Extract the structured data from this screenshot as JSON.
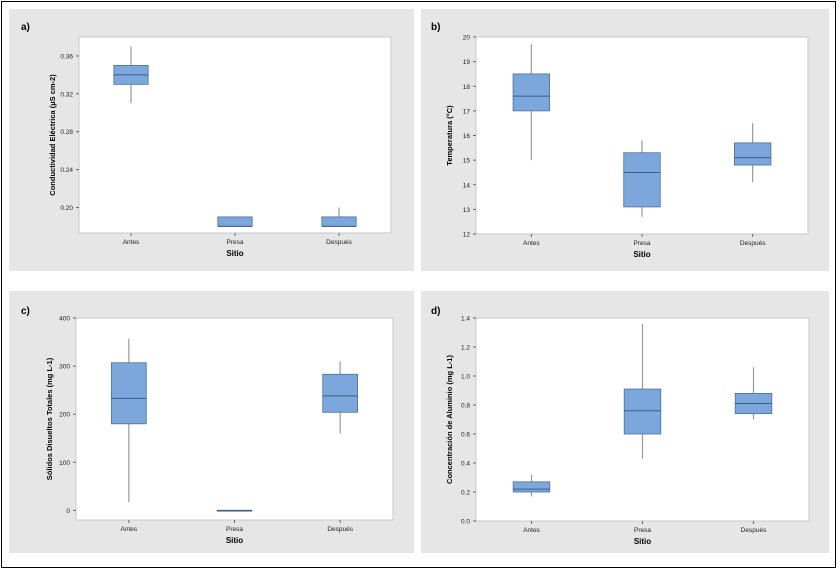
{
  "chart_data": [
    {
      "type": "box",
      "panel_label": "a)",
      "categories": [
        "Antes",
        "Presa",
        "Después"
      ],
      "xlabel": "Sitio",
      "ylabel": "Conductividad Eléctrica (µS cm-2)",
      "yticks": [
        "0.20",
        "0.24",
        "0.28",
        "0.32",
        "0.36"
      ],
      "ylim": [
        0.173,
        0.38
      ],
      "boxes": [
        {
          "min": 0.31,
          "q1": 0.33,
          "median": 0.34,
          "q3": 0.35,
          "max": 0.37
        },
        {
          "min": 0.18,
          "q1": 0.18,
          "median": 0.18,
          "q3": 0.19,
          "max": 0.19
        },
        {
          "min": 0.18,
          "q1": 0.18,
          "median": 0.18,
          "q3": 0.19,
          "max": 0.2
        }
      ]
    },
    {
      "type": "box",
      "panel_label": "b)",
      "categories": [
        "Antes",
        "Presa",
        "Después"
      ],
      "xlabel": "Sitio",
      "ylabel": "Temperatura (°C)",
      "yticks": [
        "12",
        "13",
        "14",
        "15",
        "16",
        "17",
        "18",
        "19",
        "20"
      ],
      "ylim": [
        12,
        20
      ],
      "boxes": [
        {
          "min": 15.0,
          "q1": 17.0,
          "median": 17.6,
          "q3": 18.5,
          "max": 19.7
        },
        {
          "min": 12.7,
          "q1": 13.1,
          "median": 14.5,
          "q3": 15.3,
          "max": 15.8
        },
        {
          "min": 14.1,
          "q1": 14.8,
          "median": 15.1,
          "q3": 15.7,
          "max": 16.5
        }
      ]
    },
    {
      "type": "box",
      "panel_label": "c)",
      "categories": [
        "Antes",
        "Presa",
        "Después"
      ],
      "xlabel": "Sitio",
      "ylabel": "Sólidos Disueltos Totales (mg L-1)",
      "yticks": [
        "0",
        "100",
        "200",
        "300",
        "400"
      ],
      "ylim": [
        -20,
        400
      ],
      "boxes": [
        {
          "min": 17,
          "q1": 180,
          "median": 233,
          "q3": 307,
          "max": 357
        },
        {
          "min": 0,
          "q1": 0,
          "median": 0,
          "q3": 0,
          "max": 0
        },
        {
          "min": 160,
          "q1": 204,
          "median": 238,
          "q3": 283,
          "max": 310
        }
      ]
    },
    {
      "type": "box",
      "panel_label": "d)",
      "categories": [
        "Antes",
        "Presa",
        "Después"
      ],
      "xlabel": "Sitio",
      "ylabel": "Concentración de Aluminio (mg L-1)",
      "yticks": [
        "0.0",
        "0.2",
        "0.4",
        "0.6",
        "0.8",
        "1.0",
        "1.2",
        "1.4"
      ],
      "ylim": [
        0,
        1.4
      ],
      "boxes": [
        {
          "min": 0.17,
          "q1": 0.2,
          "median": 0.22,
          "q3": 0.27,
          "max": 0.32
        },
        {
          "min": 0.43,
          "q1": 0.6,
          "median": 0.76,
          "q3": 0.91,
          "max": 1.36
        },
        {
          "min": 0.7,
          "q1": 0.74,
          "median": 0.81,
          "q3": 0.88,
          "max": 1.06
        }
      ]
    }
  ],
  "colors": {
    "panel_bg": "#e6e6e6",
    "plot_bg": "#ffffff",
    "box_fill": "#7ba7dc",
    "box_stroke": "#4f6f96",
    "whisker": "#9a9a9a",
    "median": "#3e5d86"
  }
}
